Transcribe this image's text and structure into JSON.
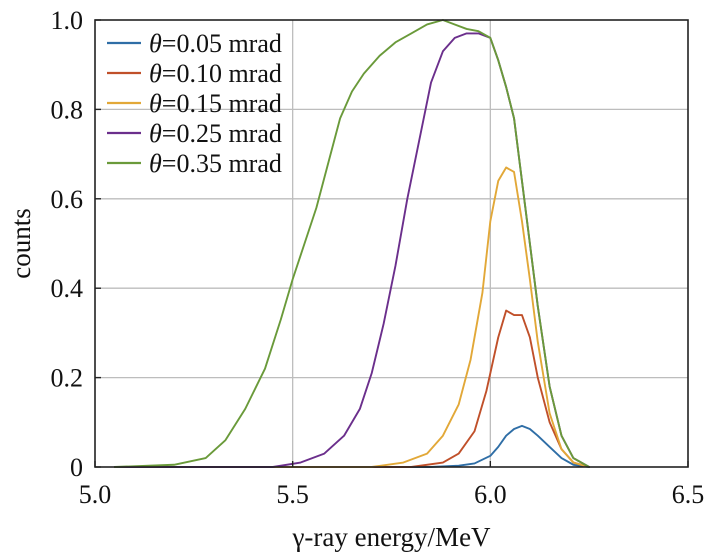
{
  "chart_data": {
    "type": "line",
    "title": "",
    "xlabel": "γ-ray energy/MeV",
    "ylabel": "counts",
    "xlim": [
      5.0,
      6.5
    ],
    "ylim": [
      0,
      1.0
    ],
    "xticks": [
      "5.0",
      "5.5",
      "6.0",
      "6.5"
    ],
    "yticks": [
      "0",
      "0.2",
      "0.4",
      "0.6",
      "0.8",
      "1.0"
    ],
    "grid": true,
    "legend_position": "top-left",
    "series": [
      {
        "name": "=0.05 mrad",
        "theta": "θ",
        "color": "#2f6ea6",
        "x": [
          5.05,
          5.85,
          5.92,
          5.96,
          6.0,
          6.02,
          6.04,
          6.06,
          6.08,
          6.1,
          6.12,
          6.15,
          6.18,
          6.21,
          6.25
        ],
        "y": [
          0.0,
          0.0,
          0.003,
          0.008,
          0.025,
          0.045,
          0.07,
          0.085,
          0.092,
          0.085,
          0.07,
          0.045,
          0.02,
          0.005,
          0.0
        ]
      },
      {
        "name": "=0.10 mrad",
        "theta": "θ",
        "color": "#c0502a",
        "x": [
          5.05,
          5.8,
          5.88,
          5.92,
          5.96,
          5.99,
          6.02,
          6.04,
          6.06,
          6.08,
          6.1,
          6.12,
          6.15,
          6.18,
          6.21,
          6.25
        ],
        "y": [
          0.0,
          0.0,
          0.01,
          0.03,
          0.08,
          0.17,
          0.29,
          0.35,
          0.34,
          0.34,
          0.29,
          0.2,
          0.1,
          0.04,
          0.01,
          0.0
        ]
      },
      {
        "name": "=0.15 mrad",
        "theta": "θ",
        "color": "#e2a838",
        "x": [
          5.05,
          5.7,
          5.78,
          5.84,
          5.88,
          5.92,
          5.95,
          5.98,
          6.0,
          6.02,
          6.04,
          6.06,
          6.08,
          6.1,
          6.12,
          6.15,
          6.18,
          6.21,
          6.25
        ],
        "y": [
          0.0,
          0.0,
          0.01,
          0.03,
          0.07,
          0.14,
          0.24,
          0.39,
          0.55,
          0.64,
          0.67,
          0.66,
          0.55,
          0.42,
          0.28,
          0.12,
          0.04,
          0.01,
          0.0
        ]
      },
      {
        "name": "=0.25 mrad",
        "theta": "θ",
        "color": "#6b2f8c",
        "x": [
          5.05,
          5.45,
          5.52,
          5.58,
          5.63,
          5.67,
          5.7,
          5.73,
          5.76,
          5.79,
          5.82,
          5.85,
          5.88,
          5.91,
          5.94,
          5.97,
          6.0,
          6.02,
          6.04,
          6.06,
          6.08,
          6.1,
          6.12,
          6.15,
          6.18,
          6.21,
          6.25
        ],
        "y": [
          0.0,
          0.0,
          0.01,
          0.03,
          0.07,
          0.13,
          0.21,
          0.32,
          0.45,
          0.6,
          0.73,
          0.86,
          0.93,
          0.96,
          0.97,
          0.97,
          0.96,
          0.91,
          0.85,
          0.78,
          0.64,
          0.5,
          0.36,
          0.18,
          0.07,
          0.02,
          0.0
        ]
      },
      {
        "name": "=0.35 mrad",
        "theta": "θ",
        "color": "#6a9a3a",
        "x": [
          5.05,
          5.2,
          5.28,
          5.33,
          5.38,
          5.43,
          5.47,
          5.5,
          5.53,
          5.56,
          5.59,
          5.62,
          5.65,
          5.68,
          5.72,
          5.76,
          5.8,
          5.84,
          5.88,
          5.91,
          5.94,
          5.97,
          6.0,
          6.02,
          6.04,
          6.06,
          6.08,
          6.1,
          6.12,
          6.15,
          6.18,
          6.21,
          6.25
        ],
        "y": [
          0.0,
          0.005,
          0.02,
          0.06,
          0.13,
          0.22,
          0.33,
          0.42,
          0.5,
          0.58,
          0.68,
          0.78,
          0.84,
          0.88,
          0.92,
          0.95,
          0.97,
          0.99,
          1.0,
          0.99,
          0.98,
          0.975,
          0.96,
          0.91,
          0.85,
          0.78,
          0.64,
          0.5,
          0.36,
          0.18,
          0.07,
          0.02,
          0.0
        ]
      }
    ]
  }
}
